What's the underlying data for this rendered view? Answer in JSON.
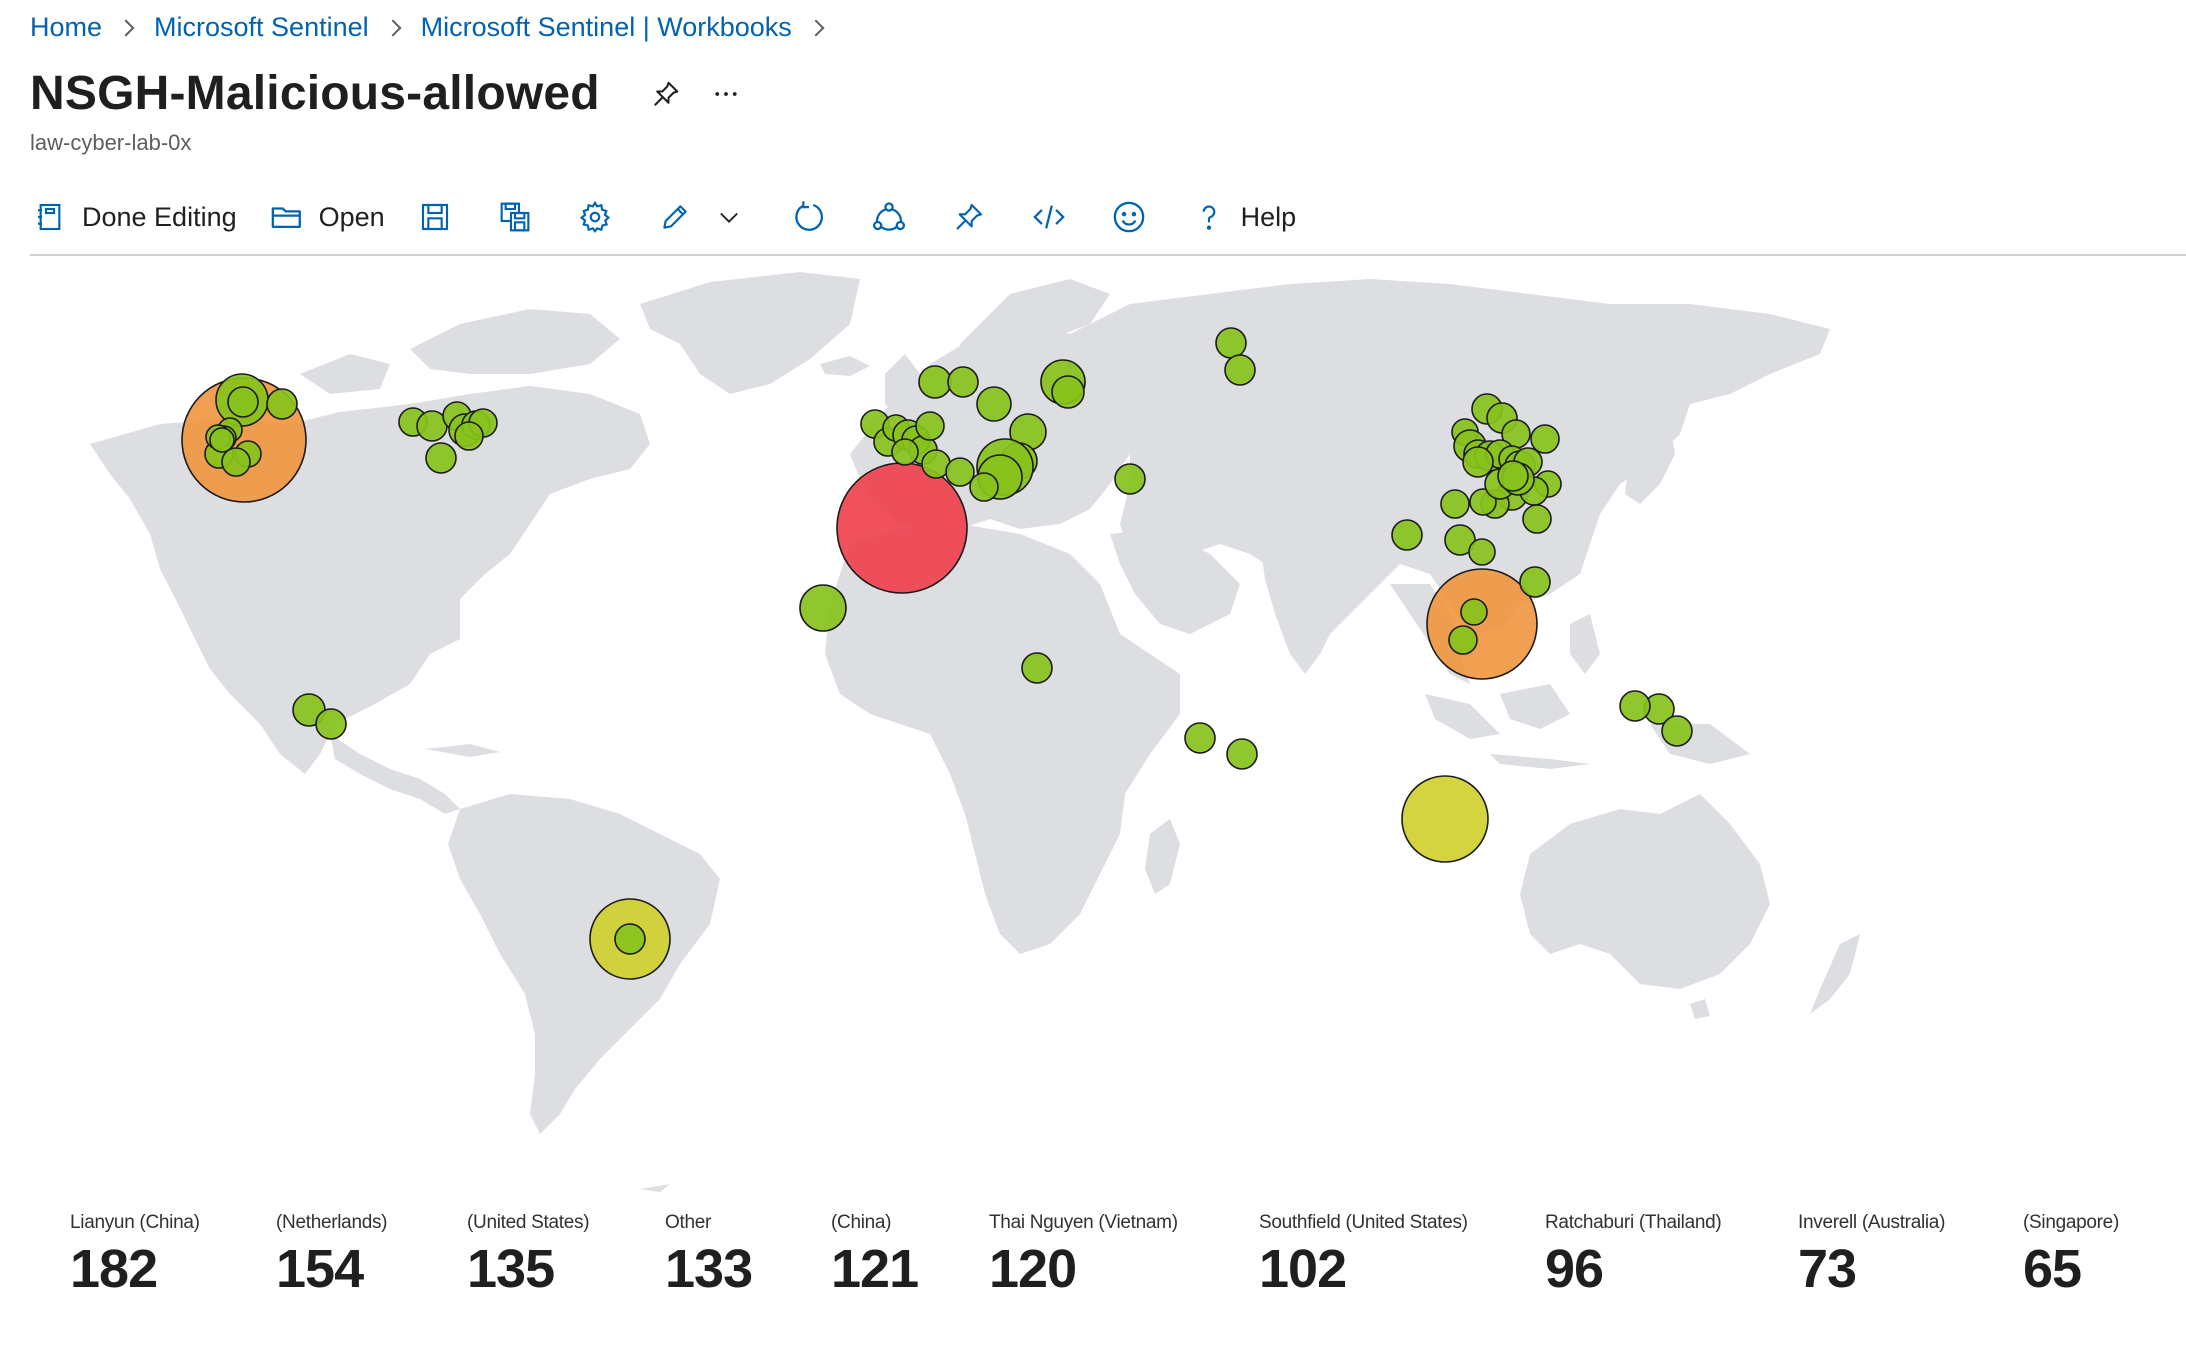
{
  "breadcrumb": [
    "Home",
    "Microsoft Sentinel",
    "Microsoft Sentinel | Workbooks"
  ],
  "title": "NSGH-Malicious-allowed",
  "subtitle": "law-cyber-lab-0x",
  "toolbar": {
    "done_editing": "Done Editing",
    "open": "Open",
    "help": "Help"
  },
  "colors": {
    "link": "#0063b1",
    "land": "#dcdee2",
    "bubble_high": "#ee3e4b",
    "bubble_mid": "#f0953e",
    "bubble_midlow": "#cfcf2c",
    "bubble_low": "#88c21c"
  },
  "stats": [
    {
      "label": "Lianyun (China)",
      "value": "182"
    },
    {
      "label": "(Netherlands)",
      "value": "154"
    },
    {
      "label": "(United States)",
      "value": "135"
    },
    {
      "label": "Other",
      "value": "133"
    },
    {
      "label": "(China)",
      "value": "121"
    },
    {
      "label": "Thai Nguyen (Vietnam)",
      "value": "120"
    },
    {
      "label": "Southfield (United States)",
      "value": "102"
    },
    {
      "label": "Ratchaburi (Thailand)",
      "value": "96"
    },
    {
      "label": "Inverell (Australia)",
      "value": "73"
    },
    {
      "label": "(Singapore)",
      "value": "65"
    }
  ]
}
